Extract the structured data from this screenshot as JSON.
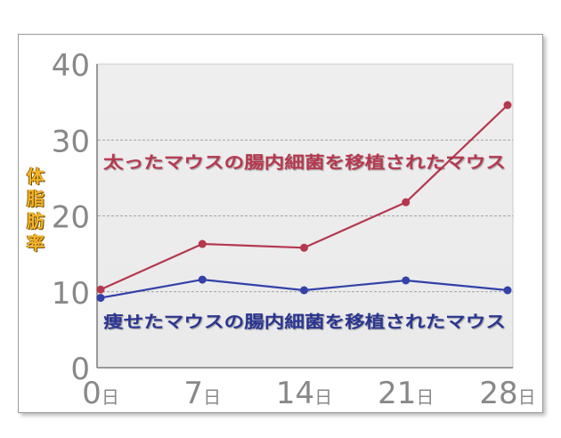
{
  "chart_data": {
    "type": "line",
    "x": [
      0,
      7,
      14,
      21,
      28
    ],
    "x_tick_labels": [
      {
        "num": "0",
        "unit": "日"
      },
      {
        "num": "7",
        "unit": "日"
      },
      {
        "num": "14",
        "unit": "日"
      },
      {
        "num": "21",
        "unit": "日"
      },
      {
        "num": "28",
        "unit": "日"
      }
    ],
    "ylim": [
      0,
      40
    ],
    "y_ticks": [
      "0",
      "10",
      "20",
      "30",
      "40"
    ],
    "ylabel_chars": [
      "体",
      "脂",
      "肪",
      "率"
    ],
    "grid": true,
    "series": [
      {
        "name": "太ったマウスの腸内細菌を移植されたマウス",
        "color": "#b5384f",
        "values": [
          10.3,
          16.3,
          15.8,
          21.8,
          34.6
        ]
      },
      {
        "name": "痩せたマウスの腸内細菌を移植されたマウス",
        "color": "#3341a8",
        "values": [
          9.2,
          11.6,
          10.2,
          11.5,
          10.2
        ]
      }
    ]
  }
}
